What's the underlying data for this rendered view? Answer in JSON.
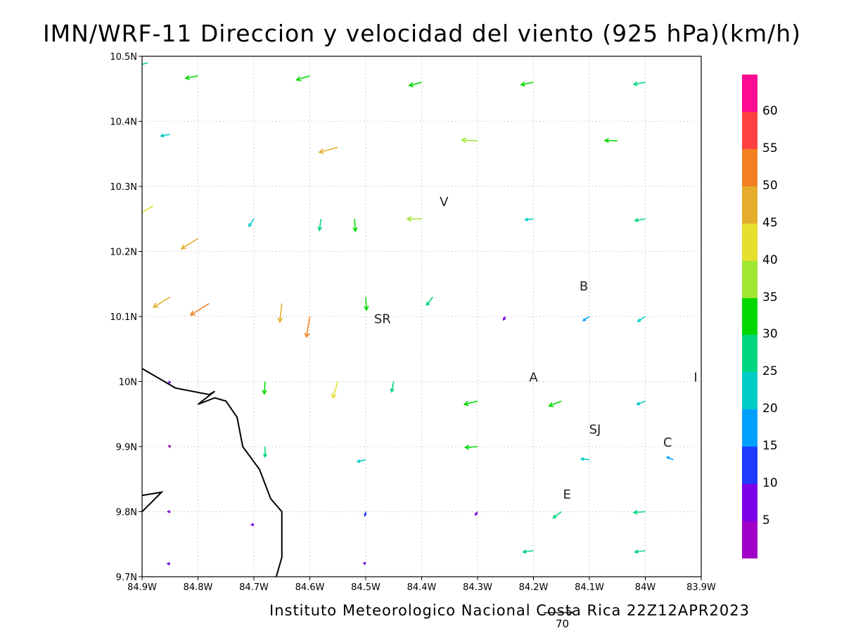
{
  "title": "IMN/WRF-11 Direccion y velocidad del viento (925 hPa)(km/h)",
  "footer": "Instituto Meteorologico Nacional Costa Rica 22Z12APR2023",
  "reference_vector_label": "70",
  "axes": {
    "lon_ticks": [
      "84.9W",
      "84.8W",
      "84.7W",
      "84.6W",
      "84.5W",
      "84.4W",
      "84.3W",
      "84.2W",
      "84.1W",
      "84W",
      "83.9W"
    ],
    "lat_ticks": [
      "10.5N",
      "10.4N",
      "10.3N",
      "10.2N",
      "10.1N",
      "10N",
      "9.9N",
      "9.8N",
      "9.7N"
    ],
    "lon_range": [
      -84.9,
      -83.9
    ],
    "lat_range": [
      9.7,
      10.5
    ],
    "grid": true
  },
  "colorbar": {
    "colors": [
      "#ff0a93",
      "#ff4040",
      "#f28022",
      "#e5ad2b",
      "#e6df2e",
      "#a0e632",
      "#00d800",
      "#00d67f",
      "#00ccc7",
      "#00a0ff",
      "#1e3cff",
      "#7a00e6",
      "#a000c8"
    ],
    "labels": [
      "60",
      "55",
      "50",
      "45",
      "40",
      "35",
      "30",
      "25",
      "20",
      "15",
      "10",
      "5"
    ]
  },
  "places": [
    {
      "label": "V",
      "lon": -84.36,
      "lat": 10.27
    },
    {
      "label": "B",
      "lon": -84.11,
      "lat": 10.14
    },
    {
      "label": "SR",
      "lon": -84.47,
      "lat": 10.09
    },
    {
      "label": "A",
      "lon": -84.2,
      "lat": 10.0
    },
    {
      "label": "I",
      "lon": -83.91,
      "lat": 10.0
    },
    {
      "label": "SJ",
      "lon": -84.09,
      "lat": 9.92
    },
    {
      "label": "C",
      "lon": -83.96,
      "lat": 9.9
    },
    {
      "label": "E",
      "lon": -84.14,
      "lat": 9.82
    }
  ],
  "coastline": [
    [
      -84.9,
      10.02
    ],
    [
      -84.84,
      9.99
    ],
    [
      -84.78,
      9.98
    ],
    [
      -84.77,
      9.985
    ],
    [
      -84.8,
      9.965
    ],
    [
      -84.77,
      9.975
    ],
    [
      -84.75,
      9.97
    ],
    [
      -84.73,
      9.945
    ],
    [
      -84.72,
      9.9
    ],
    [
      -84.69,
      9.865
    ],
    [
      -84.67,
      9.82
    ],
    [
      -84.65,
      9.8
    ],
    [
      -84.65,
      9.73
    ],
    [
      -84.66,
      9.7
    ]
  ],
  "coastline2": [
    [
      -84.9,
      9.825
    ],
    [
      -84.865,
      9.83
    ],
    [
      -84.9,
      9.8
    ]
  ],
  "chart_data": {
    "type": "vector-field",
    "title": "IMN/WRF-11 Direccion y velocidad del viento (925 hPa)(km/h)",
    "units": "km/h",
    "lon_range": [
      -84.9,
      -83.9
    ],
    "lat_range": [
      9.7,
      10.5
    ],
    "vectors": [
      {
        "lon": -84.89,
        "lat": 10.49,
        "u": -28,
        "v": -8,
        "speed": 29
      },
      {
        "lon": -84.8,
        "lat": 10.47,
        "u": -30,
        "v": -6,
        "speed": 31
      },
      {
        "lon": -84.6,
        "lat": 10.47,
        "u": -32,
        "v": -10,
        "speed": 33
      },
      {
        "lon": -84.4,
        "lat": 10.46,
        "u": -30,
        "v": -8,
        "speed": 31
      },
      {
        "lon": -84.2,
        "lat": 10.46,
        "u": -30,
        "v": -6,
        "speed": 30
      },
      {
        "lon": -84.0,
        "lat": 10.46,
        "u": -28,
        "v": -5,
        "speed": 28
      },
      {
        "lon": -84.85,
        "lat": 10.38,
        "u": -22,
        "v": -4,
        "speed": 22
      },
      {
        "lon": -84.55,
        "lat": 10.36,
        "u": -45,
        "v": -12,
        "speed": 47
      },
      {
        "lon": -84.3,
        "lat": 10.37,
        "u": -38,
        "v": 2,
        "speed": 38
      },
      {
        "lon": -84.05,
        "lat": 10.37,
        "u": -30,
        "v": 1,
        "speed": 30
      },
      {
        "lon": -84.88,
        "lat": 10.27,
        "u": -38,
        "v": -22,
        "speed": 44
      },
      {
        "lon": -84.8,
        "lat": 10.22,
        "u": -40,
        "v": -25,
        "speed": 47
      },
      {
        "lon": -84.7,
        "lat": 10.25,
        "u": -12,
        "v": -18,
        "speed": 22
      },
      {
        "lon": -84.58,
        "lat": 10.25,
        "u": -4,
        "v": -28,
        "speed": 28
      },
      {
        "lon": -84.52,
        "lat": 10.25,
        "u": 2,
        "v": -30,
        "speed": 30
      },
      {
        "lon": -84.4,
        "lat": 10.25,
        "u": -35,
        "v": 0,
        "speed": 35
      },
      {
        "lon": -84.2,
        "lat": 10.25,
        "u": -20,
        "v": -2,
        "speed": 20
      },
      {
        "lon": -84.0,
        "lat": 10.25,
        "u": -25,
        "v": -4,
        "speed": 25
      },
      {
        "lon": -84.85,
        "lat": 10.13,
        "u": -40,
        "v": -25,
        "speed": 48
      },
      {
        "lon": -84.78,
        "lat": 10.12,
        "u": -45,
        "v": -28,
        "speed": 53
      },
      {
        "lon": -84.65,
        "lat": 10.12,
        "u": -5,
        "v": -45,
        "speed": 45
      },
      {
        "lon": -84.6,
        "lat": 10.1,
        "u": -8,
        "v": -50,
        "speed": 50
      },
      {
        "lon": -84.5,
        "lat": 10.13,
        "u": 2,
        "v": -32,
        "speed": 32
      },
      {
        "lon": -84.38,
        "lat": 10.13,
        "u": -15,
        "v": -20,
        "speed": 25
      },
      {
        "lon": -84.25,
        "lat": 10.1,
        "u": -5,
        "v": -8,
        "speed": 9
      },
      {
        "lon": -84.1,
        "lat": 10.1,
        "u": -15,
        "v": -10,
        "speed": 18
      },
      {
        "lon": -84.0,
        "lat": 10.1,
        "u": -18,
        "v": -12,
        "speed": 22
      },
      {
        "lon": -84.85,
        "lat": 10.0,
        "u": -3,
        "v": -4,
        "speed": 5
      },
      {
        "lon": -84.68,
        "lat": 10.0,
        "u": -2,
        "v": -30,
        "speed": 30
      },
      {
        "lon": -84.55,
        "lat": 10.0,
        "u": -12,
        "v": -40,
        "speed": 42
      },
      {
        "lon": -84.45,
        "lat": 10.0,
        "u": -5,
        "v": -25,
        "speed": 25
      },
      {
        "lon": -84.3,
        "lat": 9.97,
        "u": -32,
        "v": -8,
        "speed": 33
      },
      {
        "lon": -84.15,
        "lat": 9.97,
        "u": -30,
        "v": -12,
        "speed": 32
      },
      {
        "lon": -84.0,
        "lat": 9.97,
        "u": -20,
        "v": -8,
        "speed": 21
      },
      {
        "lon": -84.85,
        "lat": 9.9,
        "u": -3,
        "v": 2,
        "speed": 4
      },
      {
        "lon": -84.68,
        "lat": 9.9,
        "u": 0,
        "v": -25,
        "speed": 25
      },
      {
        "lon": -84.5,
        "lat": 9.88,
        "u": -20,
        "v": -5,
        "speed": 21
      },
      {
        "lon": -84.3,
        "lat": 9.9,
        "u": -30,
        "v": -2,
        "speed": 30
      },
      {
        "lon": -84.1,
        "lat": 9.88,
        "u": -20,
        "v": 2,
        "speed": 20
      },
      {
        "lon": -83.95,
        "lat": 9.88,
        "u": -15,
        "v": 6,
        "speed": 16
      },
      {
        "lon": -84.85,
        "lat": 9.8,
        "u": -5,
        "v": 0,
        "speed": 5
      },
      {
        "lon": -84.7,
        "lat": 9.78,
        "u": -6,
        "v": 0,
        "speed": 6
      },
      {
        "lon": -84.5,
        "lat": 9.8,
        "u": -2,
        "v": -10,
        "speed": 10
      },
      {
        "lon": -84.3,
        "lat": 9.8,
        "u": -5,
        "v": -8,
        "speed": 9
      },
      {
        "lon": -84.15,
        "lat": 9.8,
        "u": -20,
        "v": -15,
        "speed": 25
      },
      {
        "lon": -84.0,
        "lat": 9.8,
        "u": -28,
        "v": -2,
        "speed": 28
      },
      {
        "lon": -84.85,
        "lat": 9.72,
        "u": -6,
        "v": 0,
        "speed": 6
      },
      {
        "lon": -84.5,
        "lat": 9.72,
        "u": -5,
        "v": 2,
        "speed": 5
      },
      {
        "lon": -84.2,
        "lat": 9.74,
        "u": -25,
        "v": -3,
        "speed": 25
      },
      {
        "lon": -84.0,
        "lat": 9.74,
        "u": -25,
        "v": -3,
        "speed": 25
      }
    ]
  }
}
